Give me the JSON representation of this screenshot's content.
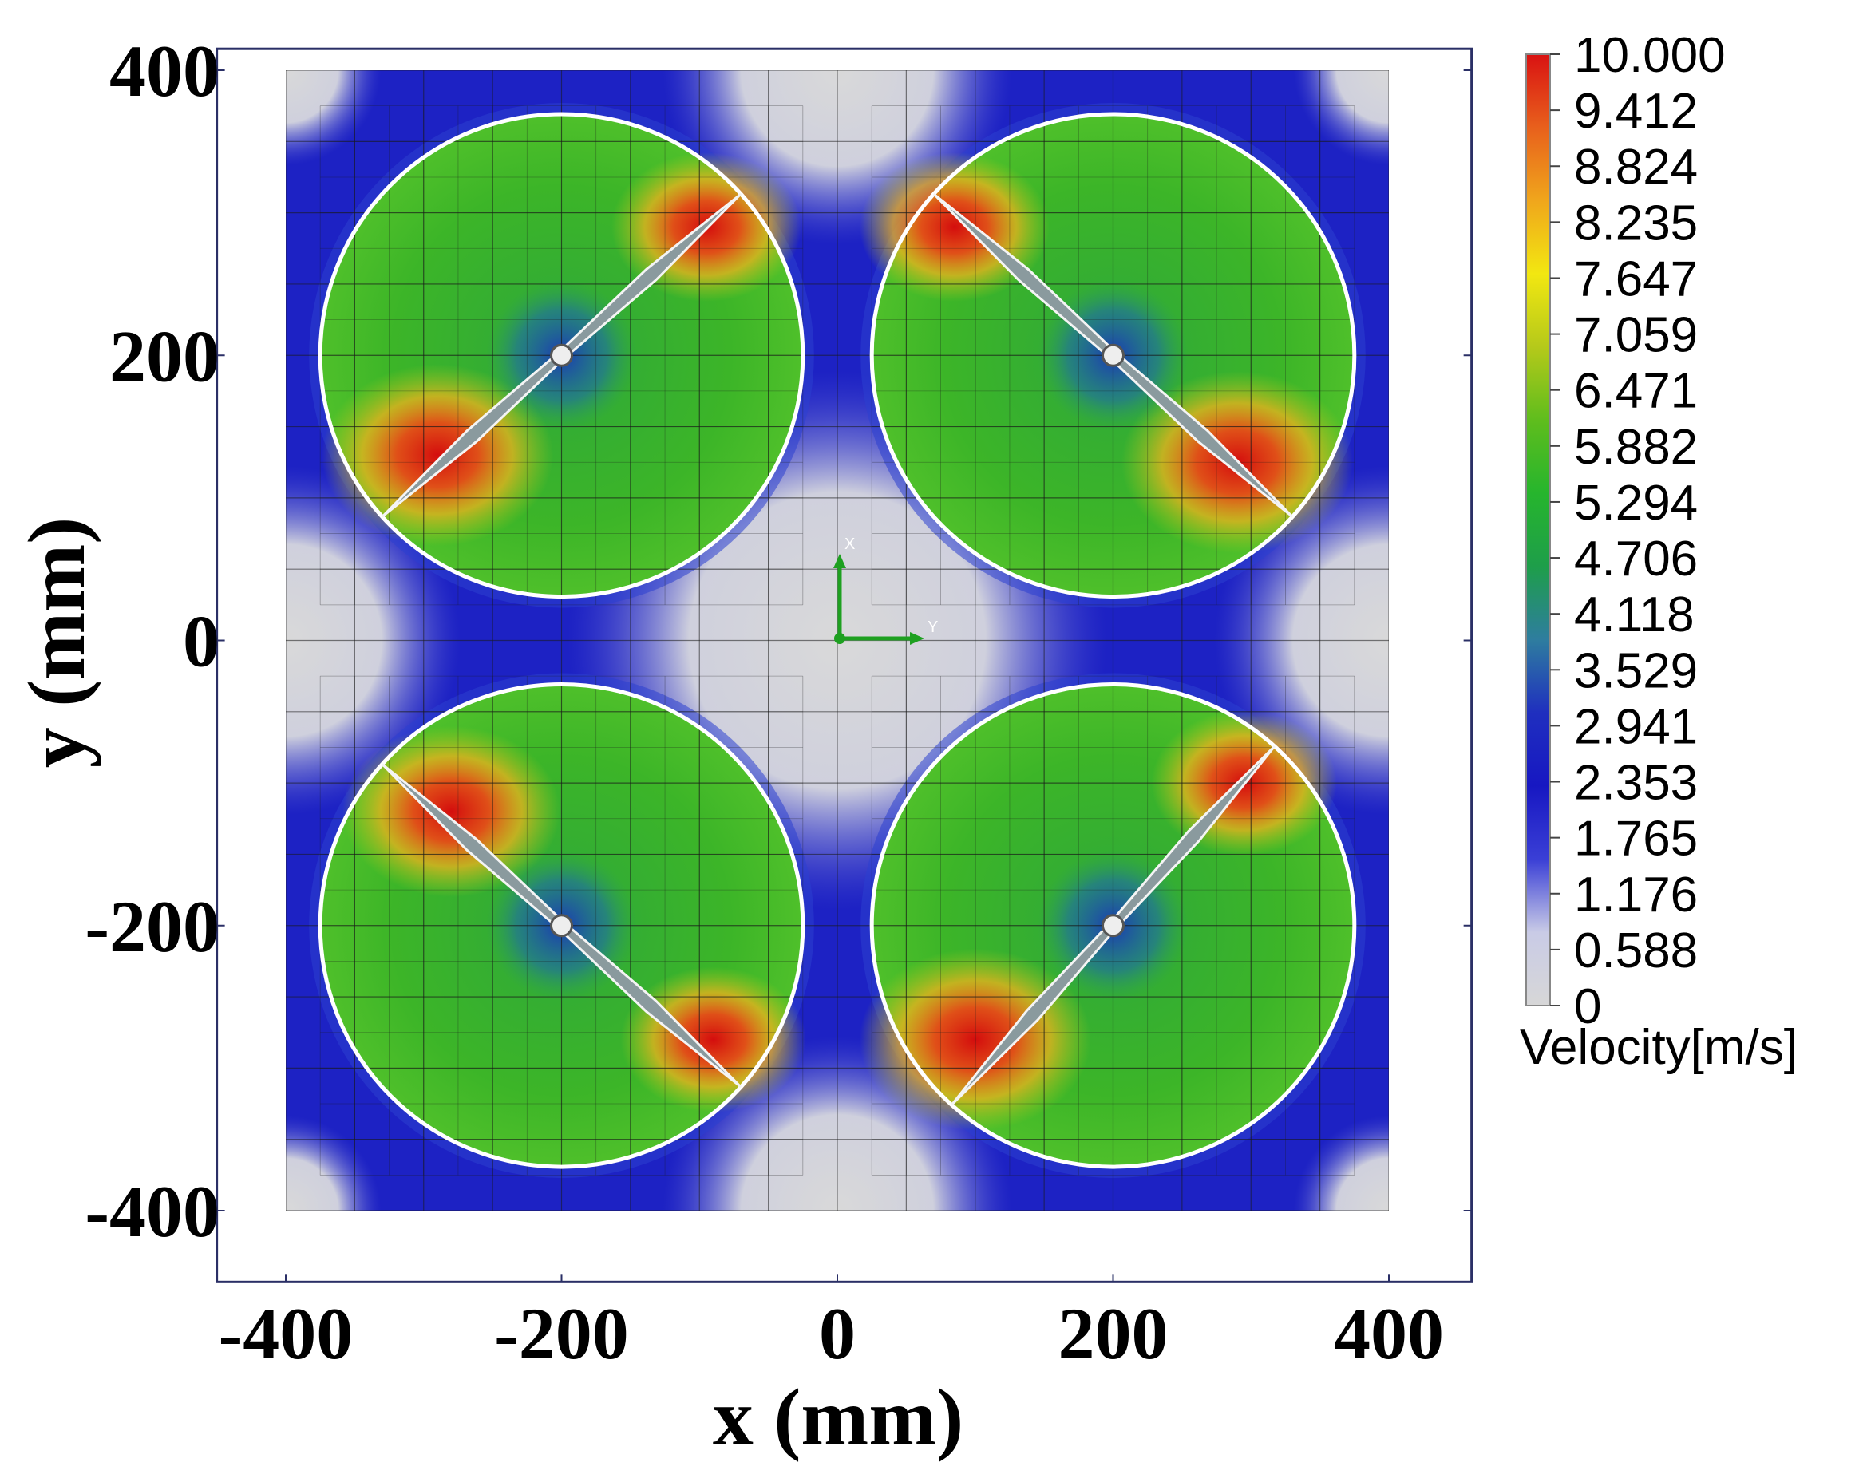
{
  "chart_data": {
    "type": "heatmap",
    "title": "",
    "xlabel": "x (mm)",
    "ylabel": "y (mm)",
    "xlim": [
      -450,
      460
    ],
    "ylim": [
      -450,
      415
    ],
    "xticks": [
      -400,
      -200,
      0,
      200,
      400
    ],
    "yticks": [
      400,
      200,
      0,
      -200,
      -400
    ],
    "xtick_labels": [
      "-400",
      "-200",
      "0",
      "200",
      "400"
    ],
    "ytick_labels": [
      "400",
      "200",
      "0",
      "-200",
      "-400"
    ],
    "domain": {
      "x": [
        -400,
        400
      ],
      "y": [
        -400,
        400
      ]
    },
    "grid": false,
    "rotors": [
      {
        "name": "rotor-top-left",
        "center": [
          -200,
          200
        ],
        "radius": 175,
        "blade_angle_deg": 42,
        "blade_half_length": 175
      },
      {
        "name": "rotor-top-right",
        "center": [
          200,
          200
        ],
        "radius": 175,
        "blade_angle_deg": -42,
        "blade_half_length": 175
      },
      {
        "name": "rotor-bottom-left",
        "center": [
          -200,
          -200
        ],
        "radius": 175,
        "blade_angle_deg": -42,
        "blade_half_length": 175
      },
      {
        "name": "rotor-bottom-right",
        "center": [
          200,
          -200
        ],
        "radius": 175,
        "blade_angle_deg": 48,
        "blade_half_length": 175
      }
    ],
    "high_velocity_zones": [
      {
        "x": -290,
        "y": 130,
        "value": 10.0
      },
      {
        "x": -95,
        "y": 290,
        "value": 8.2
      },
      {
        "x": 290,
        "y": 125,
        "value": 10.0
      },
      {
        "x": 85,
        "y": 290,
        "value": 8.2
      },
      {
        "x": -280,
        "y": -120,
        "value": 9.4
      },
      {
        "x": -90,
        "y": -280,
        "value": 8.0
      },
      {
        "x": 100,
        "y": -280,
        "value": 10.0
      },
      {
        "x": 295,
        "y": -100,
        "value": 8.0
      }
    ],
    "colorbar": {
      "label": "Velocity[m/s]",
      "min": 0,
      "max": 10.0,
      "ticks": [
        "10.000",
        "9.412",
        "8.824",
        "8.235",
        "7.647",
        "7.059",
        "6.471",
        "5.882",
        "5.294",
        "4.706",
        "4.118",
        "3.529",
        "2.941",
        "2.353",
        "1.765",
        "1.176",
        "0.588",
        "0"
      ],
      "colors": [
        "#d7d7d7",
        "#c9cbe6",
        "#3a3fd6",
        "#1717c2",
        "#1f2fbf",
        "#2e7d9f",
        "#1e9e4a",
        "#26b52d",
        "#5fbd1d",
        "#b5c91a",
        "#f2e711",
        "#f0a61c",
        "#e8601c",
        "#d91212"
      ]
    },
    "coordinate_triad": {
      "x_label": "X",
      "y_label": "Y"
    }
  }
}
